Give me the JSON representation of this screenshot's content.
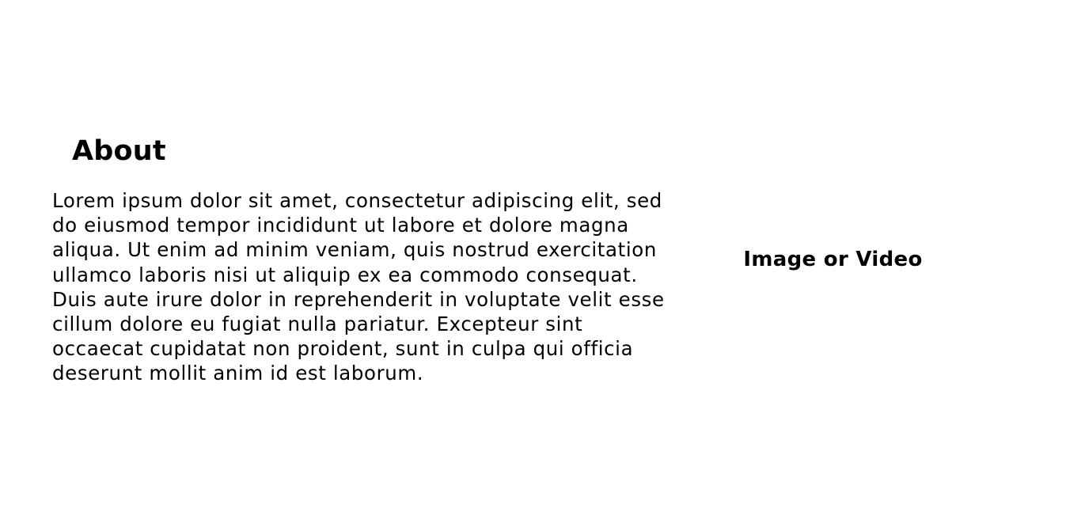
{
  "about": {
    "heading": "About",
    "body_lines": [
      "Lorem ipsum dolor sit amet, consectetur adipiscing elit, sed",
      "do eiusmod tempor incididunt ut labore et dolore magna",
      "aliqua. Ut enim ad minim veniam, quis nostrud exercitation",
      "ullamco laboris nisi ut aliquip ex ea commodo consequat.",
      "Duis aute irure dolor in reprehenderit in voluptate velit esse",
      "cillum dolore eu fugiat nulla pariatur. Excepteur sint",
      "occaecat cupidatat non proident, sunt in culpa qui officia",
      "deserunt mollit anim id est laborum."
    ]
  },
  "media": {
    "label": "Image or Video"
  }
}
